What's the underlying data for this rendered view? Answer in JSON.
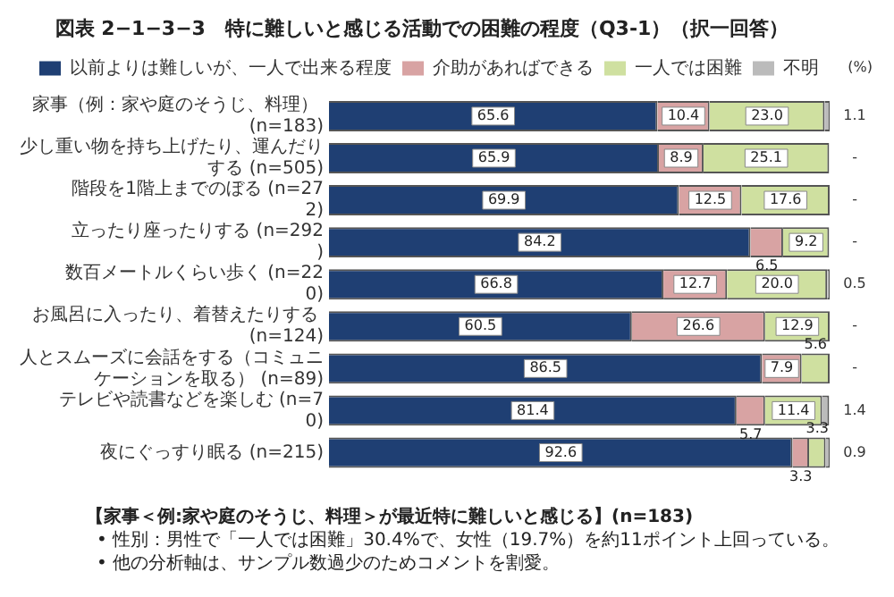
{
  "chart_data": {
    "type": "bar",
    "orientation": "horizontal",
    "stacked": true,
    "title": "図表 2−1−3−3　特に難しいと感じる活動での困難の程度（Q3-1）（択一回答）",
    "categories": [
      "家事（例：家や庭のそうじ、料理） (n=183)",
      "少し重い物を持ち上げたり、運んだりする (n=505)",
      "階段を1階上までのぼる (n=272)",
      "立ったり座ったりする (n=292)",
      "数百メートルくらい歩く (n=220)",
      "お風呂に入ったり、着替えたりする (n=124)",
      "人とスムーズに会話をする（コミュニケーションを取る） (n=89)",
      "テレビや読書などを楽しむ (n=70)",
      "夜にぐっすり眠る (n=215)"
    ],
    "xlim": [
      0,
      100
    ],
    "tick_labels": "y",
    "grid": false,
    "legend": "top",
    "series": [
      {
        "name": "以前よりは難しいが、一人で出来る程度",
        "color": "#1f3f73",
        "values": [
          65.6,
          65.9,
          69.9,
          84.2,
          66.8,
          60.5,
          86.5,
          81.4,
          92.6
        ],
        "value_labels": [
          "65.6",
          "65.9",
          "69.9",
          "84.2",
          "66.8",
          "60.5",
          "86.5",
          "81.4",
          "92.6"
        ]
      },
      {
        "name": "介助があればできる",
        "color": "#d8a3a3",
        "values": [
          10.4,
          8.9,
          12.5,
          6.5,
          12.7,
          26.6,
          7.9,
          5.7,
          3.3
        ],
        "value_labels": [
          "10.4",
          "8.9",
          "12.5",
          "6.5",
          "12.7",
          "26.6",
          "7.9",
          "5.7",
          "3.3"
        ]
      },
      {
        "name": "一人では困難",
        "color": "#cfe0a0",
        "values": [
          23.0,
          25.1,
          17.6,
          9.2,
          20.0,
          12.9,
          5.6,
          11.4,
          3.3
        ],
        "value_labels": [
          "23.0",
          "25.1",
          "17.6",
          "9.2",
          "20.0",
          "12.9",
          "5.6",
          "11.4",
          "3.3"
        ]
      },
      {
        "name": "不明",
        "color": "#bbbbbb",
        "values": [
          1.1,
          null,
          null,
          null,
          0.5,
          null,
          null,
          1.4,
          0.9
        ],
        "value_labels": [
          "1.1",
          "-",
          "-",
          "-",
          "0.5",
          "-",
          "-",
          "1.4",
          "0.9"
        ]
      }
    ],
    "annotations": [
      "(%)",
      "【家事＜例:家や庭のそうじ、料理＞が最近特に難しいと感じる】(n=183)",
      "• 性別：男性で「一人では困難」30.4%で、女性（19.7%）を約11ポイント上回っている。",
      "• 他の分析軸は、サンプル数過少のためコメントを割愛。"
    ]
  }
}
